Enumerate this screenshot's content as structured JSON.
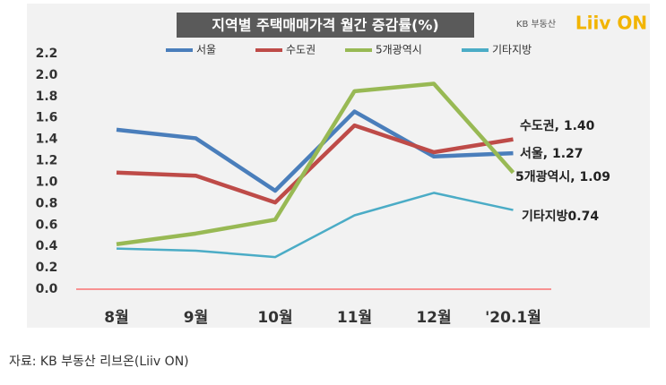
{
  "chart_data": {
    "type": "line",
    "title": "지역별 주택매매가격 월간 증감률(%)",
    "logo": [
      "KB 부동산",
      "Liiv ON"
    ],
    "source": "자료: KB 부동산  리브온(Liiv ON)",
    "categories": [
      "8월",
      "9월",
      "10월",
      "11월",
      "12월",
      "'20.1월"
    ],
    "series": [
      {
        "name": "서울",
        "color": "#4a7ebb",
        "values": [
          1.49,
          1.41,
          0.92,
          1.66,
          1.24,
          1.27
        ]
      },
      {
        "name": "수도권",
        "color": "#be4b48",
        "values": [
          1.09,
          1.06,
          0.81,
          1.53,
          1.28,
          1.4
        ]
      },
      {
        "name": "5개광역시",
        "color": "#98b954",
        "values": [
          0.42,
          0.52,
          0.65,
          1.85,
          1.92,
          1.09
        ]
      },
      {
        "name": "기타지방",
        "color": "#4bacc6",
        "values": [
          0.38,
          0.36,
          0.3,
          0.69,
          0.9,
          0.74
        ]
      }
    ],
    "annotations": [
      "서울, 1.27",
      "수도권, 1.40",
      "5개광역시, 1.09",
      "기타지방0.74"
    ],
    "ylim": [
      0,
      2.2
    ],
    "yticks": [
      {
        "value": 0,
        "label": "0.0"
      },
      {
        "value": 0.2,
        "label": "0.2"
      },
      {
        "value": 0.4,
        "label": "0.4"
      },
      {
        "value": 0.6,
        "label": "0.6"
      },
      {
        "value": 0.8,
        "label": "0.8"
      },
      {
        "value": 1.0,
        "label": "1.0"
      },
      {
        "value": 1.2,
        "label": "1.2"
      },
      {
        "value": 1.4,
        "label": "1.4"
      },
      {
        "value": 1.6,
        "label": "1.6"
      },
      {
        "value": 1.8,
        "label": "1.8"
      },
      {
        "value": 2.0,
        "label": "2.0"
      },
      {
        "value": 2.2,
        "label": "2.2"
      }
    ],
    "zero_line_color": "#ff3333",
    "grid": false
  }
}
